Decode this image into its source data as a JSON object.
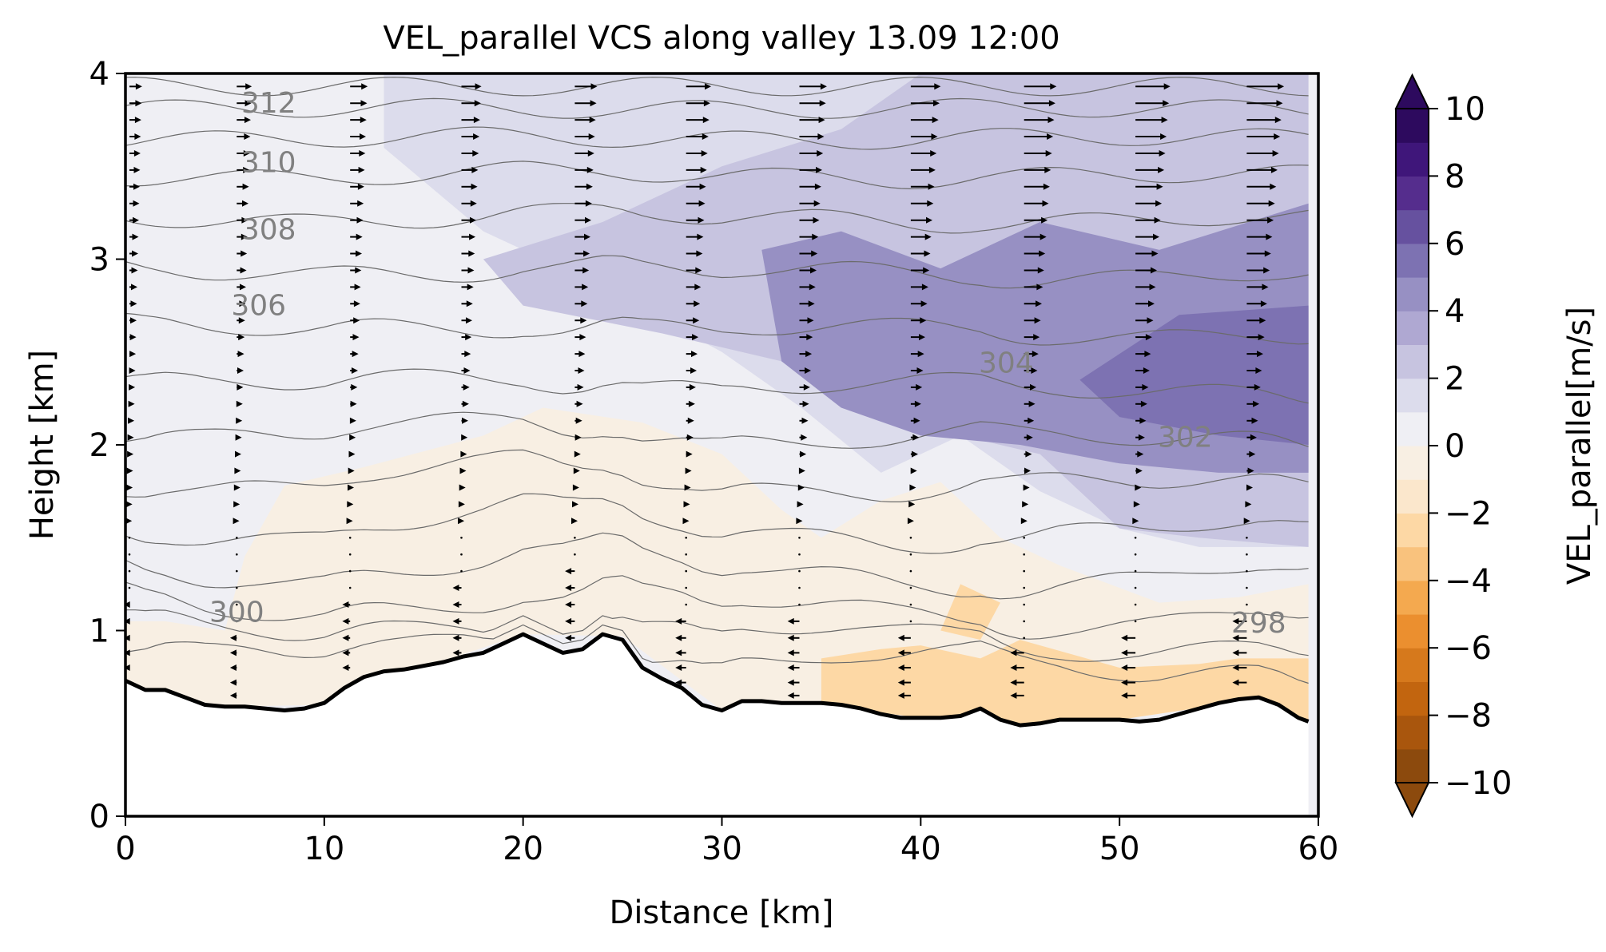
{
  "chart_data": {
    "type": "contour",
    "title": "VEL_parallel VCS along valley 13.09 12:00",
    "xlabel": "Distance [km]",
    "ylabel": "Height [km]",
    "xlim": [
      0,
      60
    ],
    "ylim": [
      0,
      4
    ],
    "xticks": [
      0,
      10,
      20,
      30,
      40,
      50,
      60
    ],
    "yticks": [
      0,
      1,
      2,
      3,
      4
    ],
    "grid": false,
    "colorbar": {
      "label": "VEL_parallel[m/s]",
      "range": [
        -10,
        10
      ],
      "ticks": [
        -10,
        -8,
        -6,
        -4,
        -2,
        0,
        2,
        4,
        6,
        8,
        10
      ],
      "colors_low_to_high": [
        "#8c4a0d",
        "#a9560d",
        "#c2650f",
        "#d6791c",
        "#eb8f2f",
        "#f4a94f",
        "#f9c27d",
        "#fdd8a5",
        "#fbe7cc",
        "#f8efe3",
        "#efeff4",
        "#dcdcec",
        "#c7c4e0",
        "#afa8d2",
        "#9790c3",
        "#7d72b2",
        "#66519f",
        "#552d8d",
        "#3f167a",
        "#2d0a5e"
      ]
    },
    "terrain_profile": {
      "x": [
        0,
        1,
        2,
        3,
        4,
        5,
        6,
        7,
        8,
        9,
        10,
        11,
        12,
        13,
        14,
        15,
        16,
        17,
        18,
        19,
        20,
        21,
        22,
        23,
        24,
        25,
        26,
        27,
        28,
        29,
        30,
        31,
        32,
        33,
        34,
        35,
        36,
        37,
        38,
        39,
        40,
        41,
        42,
        43,
        44,
        45,
        46,
        47,
        48,
        49,
        50,
        51,
        52,
        53,
        54,
        55,
        56,
        57,
        58,
        59,
        59.5
      ],
      "height": [
        0.73,
        0.68,
        0.68,
        0.64,
        0.6,
        0.59,
        0.59,
        0.58,
        0.57,
        0.58,
        0.61,
        0.69,
        0.75,
        0.78,
        0.79,
        0.81,
        0.83,
        0.86,
        0.88,
        0.93,
        0.98,
        0.93,
        0.88,
        0.9,
        0.98,
        0.95,
        0.8,
        0.74,
        0.69,
        0.6,
        0.57,
        0.62,
        0.62,
        0.61,
        0.61,
        0.61,
        0.6,
        0.58,
        0.55,
        0.53,
        0.53,
        0.53,
        0.54,
        0.58,
        0.52,
        0.49,
        0.5,
        0.52,
        0.52,
        0.52,
        0.52,
        0.51,
        0.52,
        0.55,
        0.58,
        0.61,
        0.63,
        0.64,
        0.6,
        0.53,
        0.51
      ]
    },
    "velocity_regions": [
      {
        "value": -1,
        "points": [
          [
            0,
            0.7
          ],
          [
            0,
            1.05
          ],
          [
            2,
            1.05
          ],
          [
            5,
            1.0
          ],
          [
            6,
            1.4
          ],
          [
            8,
            1.78
          ],
          [
            12,
            1.88
          ],
          [
            18,
            2.05
          ],
          [
            21,
            2.2
          ],
          [
            26,
            2.12
          ],
          [
            30,
            1.95
          ],
          [
            33,
            1.65
          ],
          [
            35,
            1.5
          ],
          [
            38,
            1.7
          ],
          [
            41,
            1.8
          ],
          [
            44,
            1.5
          ],
          [
            47,
            1.35
          ],
          [
            52,
            1.15
          ],
          [
            56,
            1.18
          ],
          [
            59.5,
            1.25
          ],
          [
            59.5,
            0.52
          ],
          [
            55,
            0.6
          ],
          [
            50,
            0.52
          ],
          [
            45,
            0.5
          ],
          [
            40,
            0.53
          ],
          [
            35,
            0.6
          ],
          [
            30,
            0.57
          ],
          [
            25,
            0.97
          ],
          [
            20,
            0.98
          ],
          [
            15,
            0.8
          ],
          [
            10,
            0.6
          ],
          [
            5,
            0.59
          ]
        ]
      },
      {
        "value": -2.5,
        "points": [
          [
            35,
            0.6
          ],
          [
            35,
            0.85
          ],
          [
            38,
            0.9
          ],
          [
            40,
            0.92
          ],
          [
            43,
            0.85
          ],
          [
            45,
            0.95
          ],
          [
            50,
            0.8
          ],
          [
            54,
            0.82
          ],
          [
            56,
            0.85
          ],
          [
            59.5,
            0.85
          ],
          [
            59.5,
            0.52
          ],
          [
            55,
            0.6
          ],
          [
            50,
            0.52
          ],
          [
            45,
            0.5
          ],
          [
            40,
            0.53
          ]
        ]
      },
      {
        "value": -2.5,
        "points": [
          [
            41,
            1.0
          ],
          [
            42,
            1.25
          ],
          [
            44,
            1.15
          ],
          [
            43,
            0.95
          ]
        ]
      },
      {
        "value": 1,
        "points": [
          [
            13,
            4
          ],
          [
            13,
            3.6
          ],
          [
            18,
            3.15
          ],
          [
            24,
            2.85
          ],
          [
            30,
            2.5
          ],
          [
            34,
            2.2
          ],
          [
            38,
            1.85
          ],
          [
            42,
            2.05
          ],
          [
            46,
            1.75
          ],
          [
            50,
            1.55
          ],
          [
            54,
            1.45
          ],
          [
            59.5,
            1.45
          ],
          [
            59.5,
            4
          ]
        ]
      },
      {
        "value": 2.5,
        "points": [
          [
            18,
            3.0
          ],
          [
            24,
            3.2
          ],
          [
            30,
            3.5
          ],
          [
            36,
            3.7
          ],
          [
            40,
            4
          ],
          [
            59.5,
            4
          ],
          [
            59.5,
            1.45
          ],
          [
            54,
            1.5
          ],
          [
            50,
            1.55
          ],
          [
            46,
            1.95
          ],
          [
            42,
            2.05
          ],
          [
            38,
            2.15
          ],
          [
            33,
            2.45
          ],
          [
            27,
            2.6
          ],
          [
            20,
            2.75
          ]
        ]
      },
      {
        "value": 4.5,
        "points": [
          [
            32,
            3.05
          ],
          [
            36,
            3.15
          ],
          [
            41,
            2.95
          ],
          [
            46,
            3.2
          ],
          [
            52,
            3.05
          ],
          [
            59.5,
            3.3
          ],
          [
            59.5,
            1.85
          ],
          [
            55,
            1.85
          ],
          [
            50,
            1.9
          ],
          [
            45,
            2.0
          ],
          [
            40,
            2.05
          ],
          [
            36,
            2.2
          ],
          [
            33,
            2.45
          ]
        ]
      },
      {
        "value": 5.5,
        "points": [
          [
            48,
            2.35
          ],
          [
            53,
            2.7
          ],
          [
            59.5,
            2.75
          ],
          [
            59.5,
            2.0
          ],
          [
            55,
            2.05
          ],
          [
            50,
            2.15
          ]
        ]
      }
    ],
    "isentropes": {
      "levels": [
        298,
        299,
        300,
        301,
        302,
        303,
        304,
        305,
        306,
        307,
        308,
        309,
        310,
        311,
        312
      ],
      "labeled": [
        {
          "label": "312",
          "x": 7.2,
          "y": 3.84
        },
        {
          "label": "310",
          "x": 7.2,
          "y": 3.52
        },
        {
          "label": "308",
          "x": 7.2,
          "y": 3.16
        },
        {
          "label": "306",
          "x": 6.7,
          "y": 2.75
        },
        {
          "label": "304",
          "x": 44.3,
          "y": 2.44
        },
        {
          "label": "302",
          "x": 53.3,
          "y": 2.04
        },
        {
          "label": "300",
          "x": 5.6,
          "y": 1.1
        },
        {
          "label": "298",
          "x": 57.0,
          "y": 1.04
        }
      ]
    },
    "wind_vectors": {
      "columns_x": [
        0.2,
        5.6,
        11.3,
        16.9,
        22.6,
        28.2,
        33.9,
        39.5,
        45.2,
        50.8,
        56.4
      ],
      "levels": [
        0.65,
        0.72,
        0.8,
        0.88,
        0.96,
        1.05,
        1.14,
        1.23,
        1.32,
        1.41,
        1.5,
        1.59,
        1.68,
        1.77,
        1.86,
        1.95,
        2.04,
        2.13,
        2.22,
        2.31,
        2.4,
        2.49,
        2.58,
        2.67,
        2.76,
        2.85,
        2.94,
        3.03,
        3.12,
        3.21,
        3.3,
        3.39,
        3.48,
        3.57,
        3.66,
        3.75,
        3.84,
        3.93
      ]
    }
  }
}
